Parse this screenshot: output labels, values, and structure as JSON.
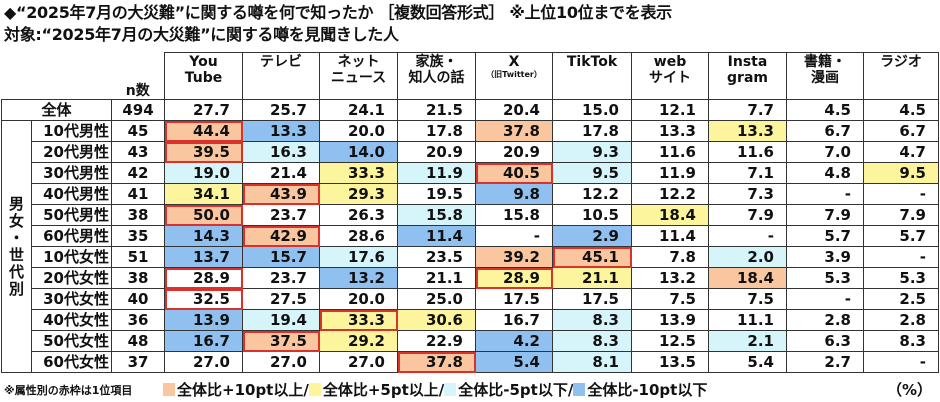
{
  "header": {
    "title": "◆“2025年7月の大災難”に関する噂を何で知ったか ［複数回答形式］ ※上位10位までを表示",
    "subtitle": "対象:“2025年7月の大災難”に関する噂を見聞きした人"
  },
  "table": {
    "n_label": "n数",
    "group_label": [
      "男",
      "女",
      "・",
      "世",
      "代",
      "別"
    ],
    "columns": [
      {
        "line1": "You",
        "line2": "Tube",
        "sub": ""
      },
      {
        "line1": "テレビ",
        "line2": "",
        "sub": ""
      },
      {
        "line1": "ネット",
        "line2": "ニュース",
        "sub": ""
      },
      {
        "line1": "家族・",
        "line2": "知人の話",
        "sub": ""
      },
      {
        "line1": "X",
        "line2": "",
        "sub": "（旧Twitter）"
      },
      {
        "line1": "TikTok",
        "line2": "",
        "sub": ""
      },
      {
        "line1": "web",
        "line2": "サイト",
        "sub": ""
      },
      {
        "line1": "Insta",
        "line2": "gram",
        "sub": ""
      },
      {
        "line1": "書籍・",
        "line2": "漫画",
        "sub": ""
      },
      {
        "line1": "ラジオ",
        "line2": "",
        "sub": ""
      }
    ],
    "total": {
      "label": "全体",
      "n": "494",
      "values": [
        "27.7",
        "25.7",
        "24.1",
        "21.5",
        "20.4",
        "15.0",
        "12.1",
        "7.7",
        "4.5",
        "4.5"
      ]
    },
    "rows": [
      {
        "label": "10代男性",
        "n": "45",
        "values": [
          "44.4",
          "13.3",
          "20.0",
          "17.8",
          "37.8",
          "17.8",
          "13.3",
          "13.3",
          "6.7",
          "6.7"
        ],
        "marks": [
          "o R",
          "b",
          "",
          "",
          "o",
          "",
          "",
          "y",
          "",
          ""
        ]
      },
      {
        "label": "20代男性",
        "n": "43",
        "values": [
          "39.5",
          "16.3",
          "14.0",
          "20.9",
          "20.9",
          "9.3",
          "11.6",
          "11.6",
          "7.0",
          "4.7"
        ],
        "marks": [
          "o R",
          "l",
          "b",
          "",
          "",
          "l",
          "",
          "",
          "",
          ""
        ]
      },
      {
        "label": "30代男性",
        "n": "42",
        "values": [
          "19.0",
          "21.4",
          "33.3",
          "11.9",
          "40.5",
          "9.5",
          "11.9",
          "7.1",
          "4.8",
          "9.5"
        ],
        "marks": [
          "l",
          "",
          "y",
          "l",
          "o R",
          "l",
          "",
          "",
          "",
          "y"
        ]
      },
      {
        "label": "40代男性",
        "n": "41",
        "values": [
          "34.1",
          "43.9",
          "29.3",
          "19.5",
          "9.8",
          "12.2",
          "12.2",
          "7.3",
          "-",
          "-"
        ],
        "marks": [
          "y",
          "o R",
          "y",
          "",
          "b",
          "",
          "",
          "",
          "",
          ""
        ]
      },
      {
        "label": "50代男性",
        "n": "38",
        "values": [
          "50.0",
          "23.7",
          "26.3",
          "15.8",
          "15.8",
          "10.5",
          "18.4",
          "7.9",
          "7.9",
          "7.9"
        ],
        "marks": [
          "o R",
          "",
          "",
          "l",
          "",
          "",
          "y",
          "",
          "",
          ""
        ]
      },
      {
        "label": "60代男性",
        "n": "35",
        "values": [
          "14.3",
          "42.9",
          "28.6",
          "11.4",
          "-",
          "2.9",
          "11.4",
          "-",
          "5.7",
          "5.7"
        ],
        "marks": [
          "b",
          "o R",
          "",
          "b",
          "",
          "b",
          "",
          "",
          "",
          ""
        ]
      },
      {
        "label": "10代女性",
        "n": "51",
        "values": [
          "13.7",
          "15.7",
          "17.6",
          "23.5",
          "39.2",
          "45.1",
          "7.8",
          "2.0",
          "3.9",
          "-"
        ],
        "marks": [
          "b",
          "b",
          "l",
          "",
          "o",
          "o R",
          "",
          "l",
          "",
          ""
        ]
      },
      {
        "label": "20代女性",
        "n": "38",
        "values": [
          "28.9",
          "23.7",
          "13.2",
          "21.1",
          "28.9",
          "21.1",
          "13.2",
          "18.4",
          "5.3",
          "5.3"
        ],
        "marks": [
          "R",
          "",
          "b",
          "",
          "y R",
          "y",
          "",
          "o",
          "",
          ""
        ]
      },
      {
        "label": "30代女性",
        "n": "40",
        "values": [
          "32.5",
          "27.5",
          "20.0",
          "25.0",
          "17.5",
          "17.5",
          "7.5",
          "7.5",
          "-",
          "2.5"
        ],
        "marks": [
          "R",
          "",
          "",
          "",
          "",
          "",
          "",
          "",
          "",
          ""
        ]
      },
      {
        "label": "40代女性",
        "n": "36",
        "values": [
          "13.9",
          "19.4",
          "33.3",
          "30.6",
          "16.7",
          "8.3",
          "13.9",
          "11.1",
          "2.8",
          "2.8"
        ],
        "marks": [
          "b",
          "l",
          "y R",
          "y",
          "",
          "l",
          "",
          "",
          "",
          ""
        ]
      },
      {
        "label": "50代女性",
        "n": "48",
        "values": [
          "16.7",
          "37.5",
          "29.2",
          "22.9",
          "4.2",
          "8.3",
          "12.5",
          "2.1",
          "6.3",
          "8.3"
        ],
        "marks": [
          "b",
          "o R",
          "y",
          "",
          "b",
          "l",
          "",
          "l",
          "",
          ""
        ]
      },
      {
        "label": "60代女性",
        "n": "37",
        "values": [
          "27.0",
          "27.0",
          "27.0",
          "37.8",
          "5.4",
          "8.1",
          "13.5",
          "5.4",
          "2.7",
          "-"
        ],
        "marks": [
          "",
          "",
          "",
          "o R",
          "b",
          "l",
          "",
          "",
          "",
          ""
        ]
      }
    ]
  },
  "footer": {
    "note": "※属性別の赤枠は1位項目",
    "legend": [
      {
        "label": "全体比+10pt以上/",
        "color": "#f9c6a0"
      },
      {
        "label": "全体比+5pt以上/",
        "color": "#fdf59e"
      },
      {
        "label": "全体比-5pt以下/",
        "color": "#d6f5fa"
      },
      {
        "label": "全体比-10pt以下",
        "color": "#8fc0f0"
      }
    ],
    "unit": "（%）"
  },
  "chart_data": {
    "type": "table",
    "title": "“2025年7月の大災難”に関する噂を何で知ったか ［複数回答形式］ ※上位10位までを表示",
    "subtitle": "対象:“2025年7月の大災難”に関する噂を見聞きした人",
    "unit": "%",
    "categories": [
      "YouTube",
      "テレビ",
      "ネットニュース",
      "家族・知人の話",
      "X（旧Twitter）",
      "TikTok",
      "webサイト",
      "Instagram",
      "書籍・漫画",
      "ラジオ"
    ],
    "series": [
      {
        "name": "全体",
        "n": 494,
        "values": [
          27.7,
          25.7,
          24.1,
          21.5,
          20.4,
          15.0,
          12.1,
          7.7,
          4.5,
          4.5
        ]
      },
      {
        "name": "10代男性",
        "n": 45,
        "values": [
          44.4,
          13.3,
          20.0,
          17.8,
          37.8,
          17.8,
          13.3,
          13.3,
          6.7,
          6.7
        ]
      },
      {
        "name": "20代男性",
        "n": 43,
        "values": [
          39.5,
          16.3,
          14.0,
          20.9,
          20.9,
          9.3,
          11.6,
          11.6,
          7.0,
          4.7
        ]
      },
      {
        "name": "30代男性",
        "n": 42,
        "values": [
          19.0,
          21.4,
          33.3,
          11.9,
          40.5,
          9.5,
          11.9,
          7.1,
          4.8,
          9.5
        ]
      },
      {
        "name": "40代男性",
        "n": 41,
        "values": [
          34.1,
          43.9,
          29.3,
          19.5,
          9.8,
          12.2,
          12.2,
          7.3,
          null,
          null
        ]
      },
      {
        "name": "50代男性",
        "n": 38,
        "values": [
          50.0,
          23.7,
          26.3,
          15.8,
          15.8,
          10.5,
          18.4,
          7.9,
          7.9,
          7.9
        ]
      },
      {
        "name": "60代男性",
        "n": 35,
        "values": [
          14.3,
          42.9,
          28.6,
          11.4,
          null,
          2.9,
          11.4,
          null,
          5.7,
          5.7
        ]
      },
      {
        "name": "10代女性",
        "n": 51,
        "values": [
          13.7,
          15.7,
          17.6,
          23.5,
          39.2,
          45.1,
          7.8,
          2.0,
          3.9,
          null
        ]
      },
      {
        "name": "20代女性",
        "n": 38,
        "values": [
          28.9,
          23.7,
          13.2,
          21.1,
          28.9,
          21.1,
          13.2,
          18.4,
          5.3,
          5.3
        ]
      },
      {
        "name": "30代女性",
        "n": 40,
        "values": [
          32.5,
          27.5,
          20.0,
          25.0,
          17.5,
          17.5,
          7.5,
          7.5,
          null,
          2.5
        ]
      },
      {
        "name": "40代女性",
        "n": 36,
        "values": [
          13.9,
          19.4,
          33.3,
          30.6,
          16.7,
          8.3,
          13.9,
          11.1,
          2.8,
          2.8
        ]
      },
      {
        "name": "50代女性",
        "n": 48,
        "values": [
          16.7,
          37.5,
          29.2,
          22.9,
          4.2,
          8.3,
          12.5,
          2.1,
          6.3,
          8.3
        ]
      },
      {
        "name": "60代女性",
        "n": 37,
        "values": [
          27.0,
          27.0,
          27.0,
          37.8,
          5.4,
          8.1,
          13.5,
          5.4,
          2.7,
          null
        ]
      }
    ],
    "legend": [
      "全体比+10pt以上",
      "全体比+5pt以上",
      "全体比-5pt以下",
      "全体比-10pt以下"
    ],
    "annotations": [
      "※属性別の赤枠は1位項目"
    ]
  }
}
